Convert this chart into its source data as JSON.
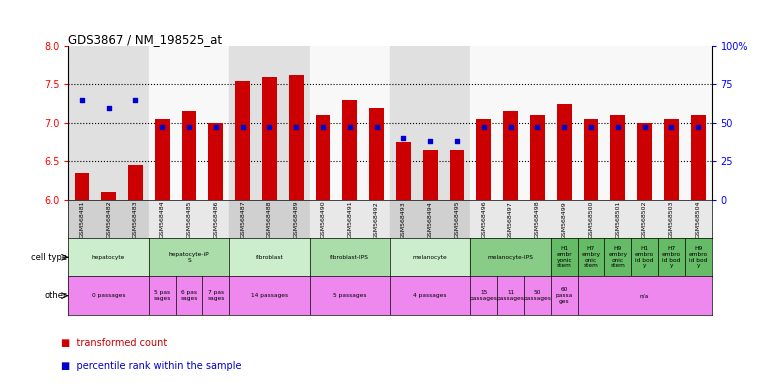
{
  "title": "GDS3867 / NM_198525_at",
  "gsm_labels": [
    "GSM568481",
    "GSM568482",
    "GSM568483",
    "GSM568484",
    "GSM568485",
    "GSM568486",
    "GSM568487",
    "GSM568488",
    "GSM568489",
    "GSM568490",
    "GSM568491",
    "GSM568492",
    "GSM568493",
    "GSM568494",
    "GSM568495",
    "GSM568496",
    "GSM568497",
    "GSM568498",
    "GSM568499",
    "GSM568500",
    "GSM568501",
    "GSM568502",
    "GSM568503",
    "GSM568504"
  ],
  "bar_values": [
    6.35,
    6.1,
    6.45,
    7.05,
    7.15,
    7.0,
    7.55,
    7.6,
    7.62,
    7.1,
    7.3,
    7.2,
    6.75,
    6.65,
    6.65,
    7.05,
    7.15,
    7.1,
    7.25,
    7.05,
    7.1,
    7.0,
    7.05,
    7.1
  ],
  "percentile_values": [
    65,
    60,
    65,
    47,
    47,
    47,
    47,
    47,
    47,
    47,
    47,
    47,
    40,
    38,
    38,
    47,
    47,
    47,
    47,
    47,
    47,
    47,
    47,
    47
  ],
  "bar_bottom": 6.0,
  "ylim": [
    6.0,
    8.0
  ],
  "y2lim": [
    0,
    100
  ],
  "yticks": [
    6.0,
    6.5,
    7.0,
    7.5,
    8.0
  ],
  "y2ticks": [
    0,
    25,
    50,
    75,
    100
  ],
  "bar_color": "#cc0000",
  "dot_color": "#0000cc",
  "cell_type_row": [
    {
      "label": "hepatocyte",
      "span": [
        0,
        3
      ],
      "color": "#cceecc"
    },
    {
      "label": "hepatocyte-iP\nS",
      "span": [
        3,
        6
      ],
      "color": "#aaddaa"
    },
    {
      "label": "fibroblast",
      "span": [
        6,
        9
      ],
      "color": "#cceecc"
    },
    {
      "label": "fibroblast-IPS",
      "span": [
        9,
        12
      ],
      "color": "#aaddaa"
    },
    {
      "label": "melanocyte",
      "span": [
        12,
        15
      ],
      "color": "#cceecc"
    },
    {
      "label": "melanocyte-IPS",
      "span": [
        15,
        18
      ],
      "color": "#88cc88"
    },
    {
      "label": "H1\nembr\nyonic\nstem",
      "span": [
        18,
        19
      ],
      "color": "#66bb66"
    },
    {
      "label": "H7\nembry\nonic\nstem",
      "span": [
        19,
        20
      ],
      "color": "#66bb66"
    },
    {
      "label": "H9\nembry\nonic\nstem",
      "span": [
        20,
        21
      ],
      "color": "#66bb66"
    },
    {
      "label": "H1\nembro\nid bod\ny",
      "span": [
        21,
        22
      ],
      "color": "#66bb66"
    },
    {
      "label": "H7\nembro\nid bod\ny",
      "span": [
        22,
        23
      ],
      "color": "#66bb66"
    },
    {
      "label": "H9\nembro\nid bod\ny",
      "span": [
        23,
        24
      ],
      "color": "#66bb66"
    }
  ],
  "other_row": [
    {
      "label": "0 passages",
      "span": [
        0,
        3
      ],
      "color": "#ee88ee"
    },
    {
      "label": "5 pas\nsages",
      "span": [
        3,
        4
      ],
      "color": "#ee88ee"
    },
    {
      "label": "6 pas\nsages",
      "span": [
        4,
        5
      ],
      "color": "#ee88ee"
    },
    {
      "label": "7 pas\nsages",
      "span": [
        5,
        6
      ],
      "color": "#ee88ee"
    },
    {
      "label": "14 passages",
      "span": [
        6,
        9
      ],
      "color": "#ee88ee"
    },
    {
      "label": "5 passages",
      "span": [
        9,
        12
      ],
      "color": "#ee88ee"
    },
    {
      "label": "4 passages",
      "span": [
        12,
        15
      ],
      "color": "#ee88ee"
    },
    {
      "label": "15\npassages",
      "span": [
        15,
        16
      ],
      "color": "#ee88ee"
    },
    {
      "label": "11\npassages",
      "span": [
        16,
        17
      ],
      "color": "#ee88ee"
    },
    {
      "label": "50\npassages",
      "span": [
        17,
        18
      ],
      "color": "#ee88ee"
    },
    {
      "label": "60\npassa\nges",
      "span": [
        18,
        19
      ],
      "color": "#ee88ee"
    },
    {
      "label": "n/a",
      "span": [
        19,
        24
      ],
      "color": "#ee88ee"
    }
  ],
  "x_bg_colors": {
    "0": "#e0e0e0",
    "1": "#e0e0e0",
    "2": "#e0e0e0",
    "3": "#f8f8f8",
    "4": "#f8f8f8",
    "5": "#f8f8f8",
    "6": "#e0e0e0",
    "7": "#e0e0e0",
    "8": "#e0e0e0",
    "9": "#f8f8f8",
    "10": "#f8f8f8",
    "11": "#f8f8f8",
    "12": "#e0e0e0",
    "13": "#e0e0e0",
    "14": "#e0e0e0",
    "15": "#f8f8f8",
    "16": "#f8f8f8",
    "17": "#f8f8f8",
    "18": "#f8f8f8",
    "19": "#f8f8f8",
    "20": "#f8f8f8",
    "21": "#f8f8f8",
    "22": "#f8f8f8",
    "23": "#f8f8f8"
  },
  "label_bg_colors": {
    "0": "#d0d0d0",
    "1": "#d0d0d0",
    "2": "#d0d0d0",
    "3": "#e8e8e8",
    "4": "#e8e8e8",
    "5": "#e8e8e8",
    "6": "#d0d0d0",
    "7": "#d0d0d0",
    "8": "#d0d0d0",
    "9": "#e8e8e8",
    "10": "#e8e8e8",
    "11": "#e8e8e8",
    "12": "#d0d0d0",
    "13": "#d0d0d0",
    "14": "#d0d0d0",
    "15": "#e8e8e8",
    "16": "#e8e8e8",
    "17": "#e8e8e8",
    "18": "#e8e8e8",
    "19": "#e8e8e8",
    "20": "#e8e8e8",
    "21": "#e8e8e8",
    "22": "#e8e8e8",
    "23": "#e8e8e8"
  }
}
